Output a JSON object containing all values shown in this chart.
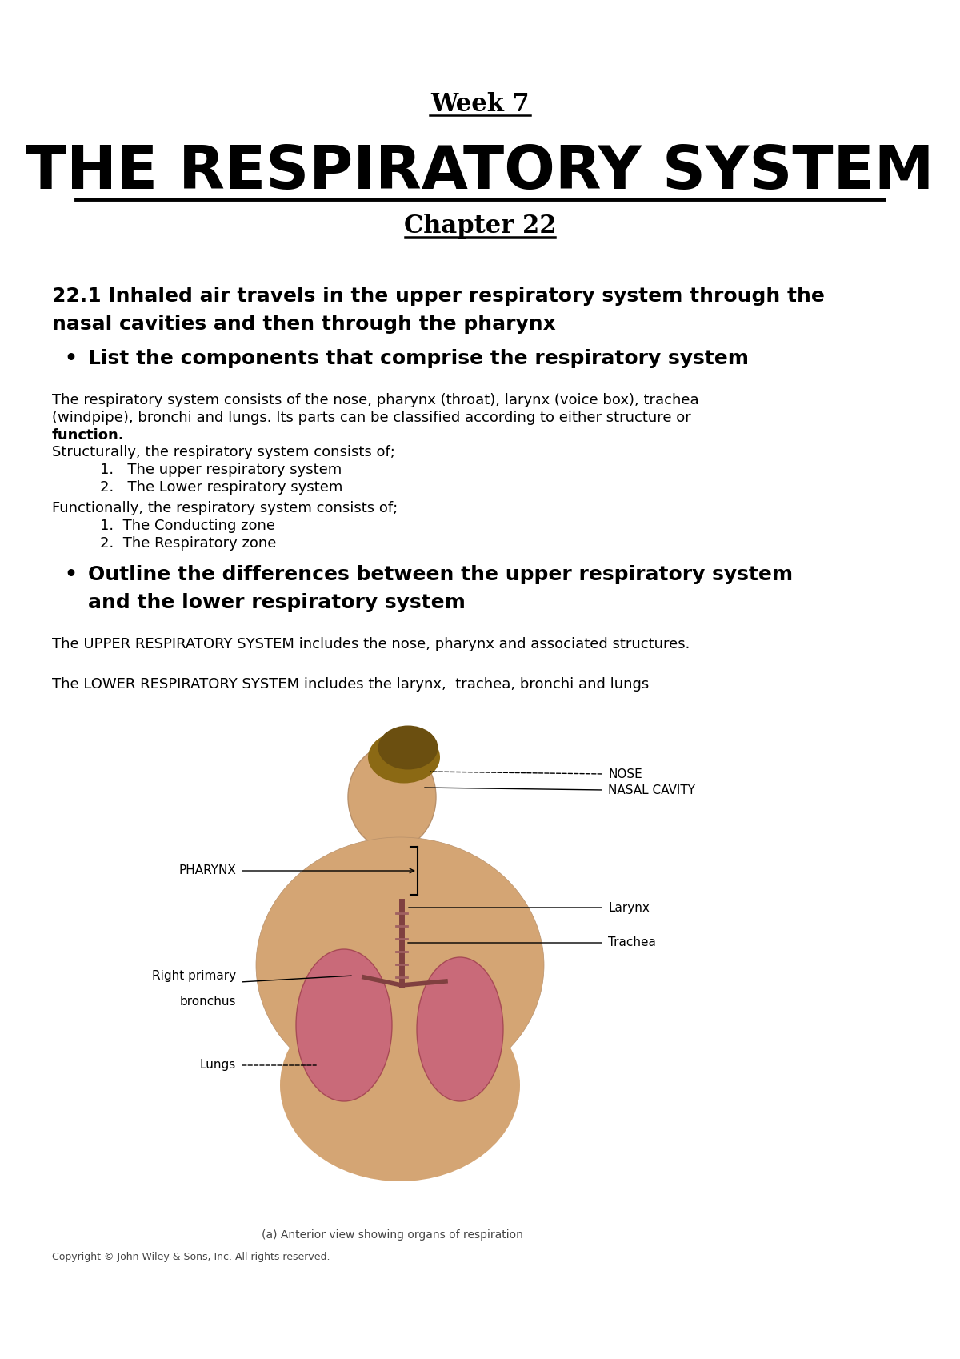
{
  "bg_color": "#ffffff",
  "title_week": "Week 7",
  "title_main": "THE RESPIRATORY SYSTEM",
  "title_chapter": "Chapter 22",
  "section_heading_line1": "22.1 Inhaled air travels in the upper respiratory system through the",
  "section_heading_line2": "nasal cavities and then through the pharynx",
  "bullet1": "List the components that comprise the respiratory system",
  "body_text1_line1": "The respiratory system consists of the nose, pharynx (throat), larynx (voice box), trachea",
  "body_text1_line2": "(windpipe), bronchi and lungs. Its parts can be classified according to either structure or",
  "body_text1_line3": "function.",
  "struct_intro": "Structurally, the respiratory system consists of;",
  "struct_items": [
    "The upper respiratory system",
    "The Lower respiratory system"
  ],
  "func_intro": "Functionally, the respiratory system consists of;",
  "func_items": [
    "The Conducting zone",
    "The Respiratory zone"
  ],
  "bullet2_line1": "Outline the differences between the upper respiratory system",
  "bullet2_line2": "and the lower respiratory system",
  "upper_text": "The UPPER RESPIRATORY SYSTEM includes the nose, pharynx and associated structures.",
  "lower_text": "The LOWER RESPIRATORY SYSTEM includes the larynx,  trachea, bronchi and lungs",
  "fig_caption": "(a) Anterior view showing organs of respiration",
  "fig_copyright": "Copyright © John Wiley & Sons, Inc. All rights reserved.",
  "label_nose": "NOSE",
  "label_nasal": "NASAL CAVITY",
  "label_pharynx": "PHARYNX",
  "label_larynx": "Larynx",
  "label_trachea": "Trachea",
  "label_bronchus_line1": "Right primary",
  "label_bronchus_line2": "bronchus",
  "label_lungs": "Lungs",
  "skin_color": "#d4a574",
  "lung_color": "#c8607a",
  "trachea_color": "#804040"
}
